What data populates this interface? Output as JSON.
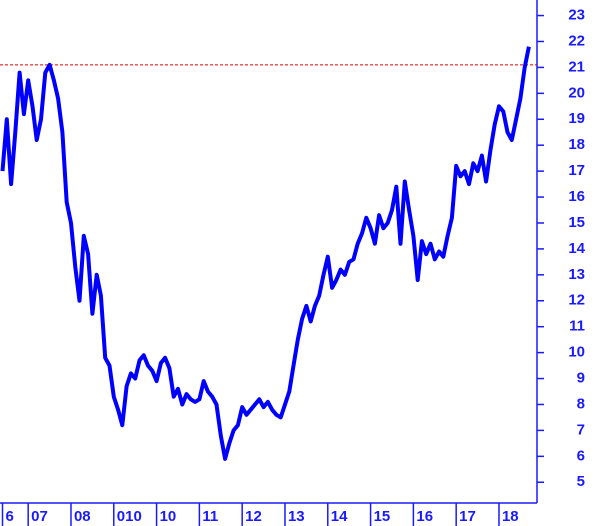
{
  "chart_data": {
    "type": "line",
    "categories": [
      "6",
      null,
      null,
      null,
      null,
      null,
      "07",
      null,
      null,
      null,
      null,
      null,
      null,
      null,
      null,
      null,
      "08",
      null,
      null,
      null,
      null,
      null,
      null,
      null,
      null,
      null,
      "010",
      null,
      null,
      null,
      null,
      null,
      null,
      null,
      null,
      null,
      "10",
      null,
      null,
      null,
      null,
      null,
      null,
      null,
      null,
      null,
      "11",
      null,
      null,
      null,
      null,
      null,
      null,
      null,
      null,
      null,
      "12",
      null,
      null,
      null,
      null,
      null,
      null,
      null,
      null,
      null,
      "13",
      null,
      null,
      null,
      null,
      null,
      null,
      null,
      null,
      null,
      "14",
      null,
      null,
      null,
      null,
      null,
      null,
      null,
      null,
      null,
      "15",
      null,
      null,
      null,
      null,
      null,
      null,
      null,
      null,
      null,
      "16",
      null,
      null,
      null,
      null,
      null,
      null,
      null,
      null,
      null,
      "17",
      null,
      null,
      null,
      null,
      null,
      null,
      null,
      null,
      null,
      "18",
      null,
      null,
      null,
      null,
      null,
      null,
      null
    ],
    "series": [
      {
        "color": "#0000ff",
        "values": [
          17.0,
          19.0,
          16.5,
          18.5,
          20.8,
          19.2,
          20.5,
          19.5,
          18.2,
          19.0,
          20.8,
          21.1,
          20.5,
          19.8,
          18.5,
          15.8,
          15.0,
          13.3,
          12.0,
          14.5,
          13.8,
          11.5,
          13.0,
          12.2,
          9.8,
          9.5,
          8.3,
          7.8,
          7.2,
          8.7,
          9.2,
          9.0,
          9.7,
          9.9,
          9.5,
          9.3,
          8.9,
          9.6,
          9.8,
          9.4,
          8.3,
          8.6,
          8.0,
          8.4,
          8.2,
          8.1,
          8.2,
          8.9,
          8.5,
          8.3,
          8.0,
          6.8,
          5.9,
          6.5,
          7.0,
          7.2,
          7.9,
          7.6,
          7.8,
          8.0,
          8.2,
          7.9,
          8.1,
          7.8,
          7.6,
          7.5,
          8.0,
          8.5,
          9.5,
          10.5,
          11.3,
          11.8,
          11.2,
          11.8,
          12.2,
          13.0,
          13.7,
          12.5,
          12.8,
          13.2,
          13.0,
          13.5,
          13.6,
          14.2,
          14.6,
          15.2,
          14.8,
          14.2,
          15.3,
          14.8,
          15.0,
          15.5,
          16.4,
          14.2,
          16.6,
          15.5,
          14.5,
          12.8,
          14.3,
          13.8,
          14.2,
          13.6,
          13.9,
          13.7,
          14.5,
          15.2,
          17.2,
          16.8,
          17.0,
          16.5,
          17.3,
          17.0,
          17.6,
          16.6,
          17.8,
          18.8,
          19.5,
          19.3,
          18.5,
          18.2,
          19.0,
          19.8,
          21.0,
          21.8
        ]
      }
    ],
    "hline": {
      "value": 21.1,
      "color": "#e00000"
    },
    "ylim": [
      4.2,
      23.6
    ],
    "yticks": [
      5,
      6,
      7,
      8,
      9,
      10,
      11,
      12,
      13,
      14,
      15,
      16,
      17,
      18,
      19,
      20,
      21,
      22,
      23
    ],
    "axis_color": "#1a1aff"
  }
}
